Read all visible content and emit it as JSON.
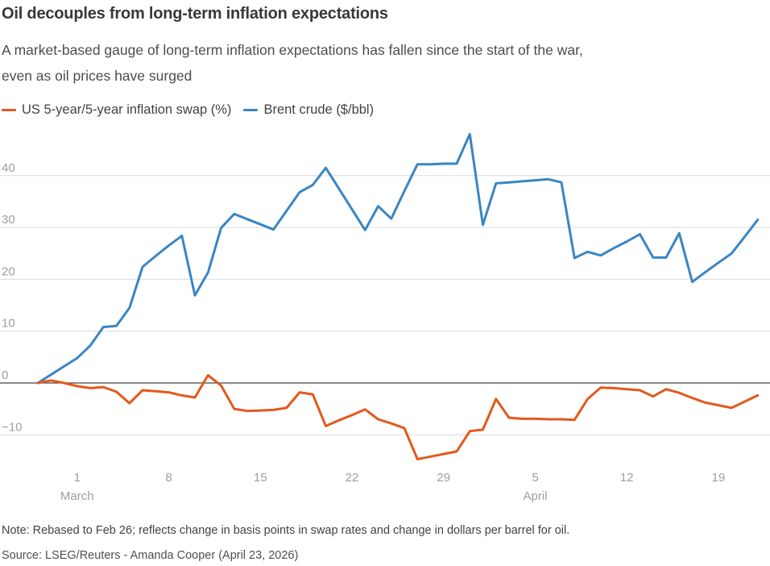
{
  "header": {
    "title": "Oil decouples from long-term inflation expectations",
    "subtitle_line1": "A market-based gauge of long-term inflation expectations has fallen since the start of the war,",
    "subtitle_line2": "even as oil prices have surged"
  },
  "legend": {
    "items": [
      {
        "label": "US 5-year/5-year inflation swap (%)",
        "color": "#e2591c"
      },
      {
        "label": "Brent crude ($/bbl)",
        "color": "#3a85c4"
      }
    ]
  },
  "chart_data": {
    "type": "line",
    "title": "Oil decouples from long-term inflation expectations",
    "x_axis": {
      "start_date": "Feb 26",
      "end_date": "Apr 22",
      "days": [
        0,
        1,
        2,
        3,
        4,
        5,
        6,
        7,
        8,
        9,
        10,
        11,
        12,
        13,
        14,
        15,
        16,
        17,
        18,
        19,
        20,
        21,
        22,
        23,
        24,
        25,
        26,
        27,
        28,
        29,
        30,
        31,
        32,
        33,
        34,
        35,
        36,
        37,
        38,
        39,
        40,
        41,
        42,
        43,
        44,
        45,
        46,
        47,
        48,
        49,
        50,
        51,
        52,
        53,
        54,
        55
      ],
      "ticks": [
        {
          "day": 3,
          "label": "1"
        },
        {
          "day": 10,
          "label": "8"
        },
        {
          "day": 17,
          "label": "15"
        },
        {
          "day": 24,
          "label": "22"
        },
        {
          "day": 31,
          "label": "29"
        },
        {
          "day": 38,
          "label": "5"
        },
        {
          "day": 45,
          "label": "12"
        },
        {
          "day": 52,
          "label": "19"
        }
      ],
      "month_labels": [
        {
          "day": 3,
          "label": "March"
        },
        {
          "day": 38,
          "label": "April"
        }
      ]
    },
    "y_axis": {
      "range": [
        -16.5,
        49.5
      ],
      "grid": true,
      "zero_line": true,
      "ticks": [
        {
          "value": 40,
          "label": "40"
        },
        {
          "value": 30,
          "label": "30"
        },
        {
          "value": 20,
          "label": "20"
        },
        {
          "value": 10,
          "label": "10"
        },
        {
          "value": 0,
          "label": "0"
        },
        {
          "value": -10,
          "label": "−10"
        }
      ]
    },
    "legend_position": "top-left",
    "series": [
      {
        "name": "US 5-year/5-year inflation swap (%)",
        "color": "#e2591c",
        "values": [
          0,
          0.5,
          0.0,
          -0.6,
          -1.0,
          -0.8,
          -1.7,
          -3.9,
          -1.4,
          -1.6,
          -1.8,
          -2.4,
          -2.8,
          1.5,
          -0.5,
          -5.0,
          -5.4,
          -5.3,
          -5.2,
          -4.8,
          -1.8,
          -2.2,
          -8.3,
          -7.2,
          -6.2,
          -5.1,
          -7.0,
          -7.8,
          -8.7,
          -14.7,
          -14.2,
          -13.7,
          -13.2,
          -9.3,
          -9.0,
          -3.1,
          -6.7,
          -6.9,
          -6.9,
          -7.0,
          -7.0,
          -7.1,
          -3.1,
          -0.9,
          -1.0,
          -1.2,
          -1.4,
          -2.6,
          -1.2,
          -1.9,
          -2.9,
          -3.8,
          -4.3,
          -4.8,
          -3.6,
          -2.4
        ]
      },
      {
        "name": "Brent crude ($/bbl)",
        "color": "#3a85c4",
        "values": [
          0,
          1.6,
          3.2,
          4.8,
          7.2,
          10.8,
          11.0,
          14.5,
          22.4,
          24.5,
          26.5,
          28.4,
          16.9,
          21.3,
          29.9,
          32.6,
          31.6,
          30.6,
          29.6,
          33.2,
          36.8,
          38.2,
          41.5,
          37.5,
          33.5,
          29.5,
          34.1,
          31.7,
          37.0,
          42.2,
          42.2,
          42.3,
          42.3,
          48.0,
          30.5,
          38.5,
          38.7,
          38.9,
          39.1,
          39.3,
          38.7,
          24.1,
          25.3,
          24.6,
          26.0,
          27.3,
          28.7,
          24.2,
          24.2,
          28.9,
          19.5,
          21.4,
          23.2,
          25.0,
          28.2,
          31.5
        ]
      }
    ]
  },
  "footer": {
    "note": "Note: Rebased to Feb 26; reflects change in basis points in swap rates and change in dollars per barrel for oil.",
    "source": "Source: LSEG/Reuters - Amanda Cooper (April 23, 2026)"
  }
}
